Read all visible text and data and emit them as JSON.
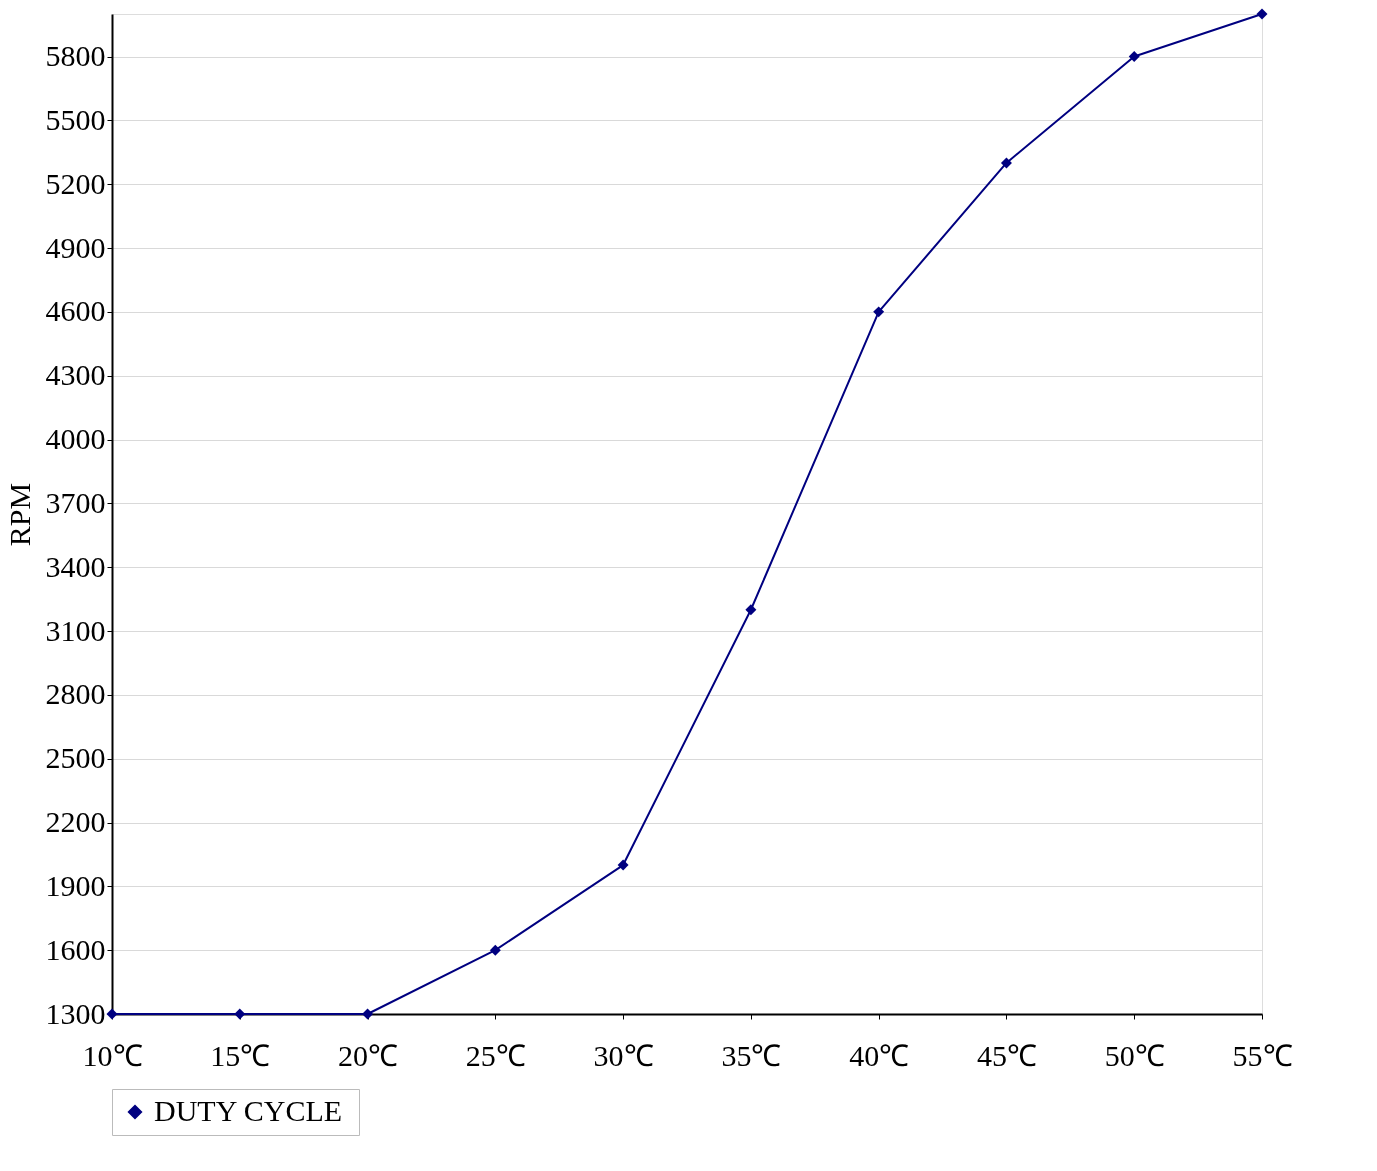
{
  "chart_data": {
    "type": "line",
    "ylabel": "RPM",
    "categories": [
      "10℃",
      "15℃",
      "20℃",
      "25℃",
      "30℃",
      "35℃",
      "40℃",
      "45℃",
      "50℃",
      "55℃"
    ],
    "series": [
      {
        "name": "DUTY  CYCLE",
        "color": "#000080",
        "values": [
          1300,
          1300,
          1300,
          1600,
          2000,
          3200,
          4600,
          5300,
          5800,
          6000
        ]
      }
    ],
    "ylim": [
      1300,
      6000
    ],
    "yticks": [
      1300,
      1600,
      1900,
      2200,
      2500,
      2800,
      3100,
      3400,
      3700,
      4000,
      4300,
      4600,
      4900,
      5200,
      5500,
      5800
    ],
    "grid": "y",
    "legend": "bottom",
    "marker": "diamond",
    "line_style": "solid"
  }
}
